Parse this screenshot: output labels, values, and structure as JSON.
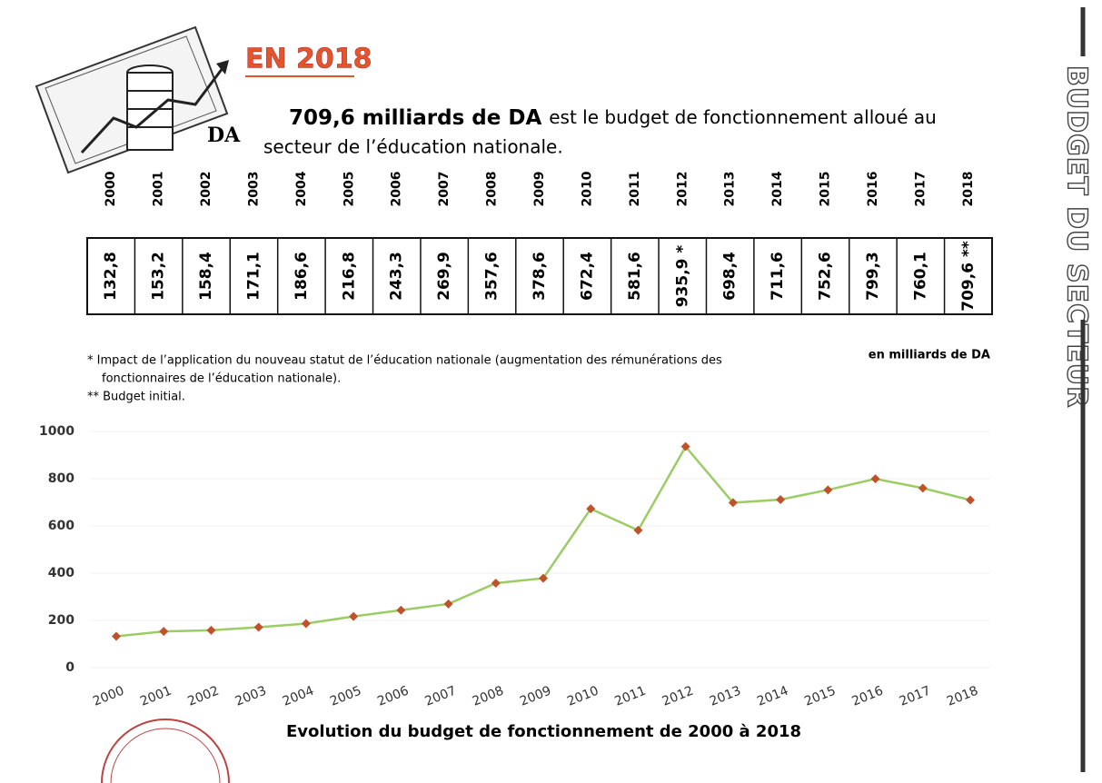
{
  "header": {
    "title": "EN 2018",
    "icon_label": "DA",
    "lead_bold": "709,6 milliards de DA",
    "lead_line1": "est le budget de fonctionnement alloué au",
    "lead_line2": "secteur de l’éducation nationale."
  },
  "side_title": "BUDGET DU SECTEUR",
  "table": {
    "years": [
      "2000",
      "2001",
      "2002",
      "2003",
      "2004",
      "2005",
      "2006",
      "2007",
      "2008",
      "2009",
      "2010",
      "2011",
      "2012",
      "2013",
      "2014",
      "2015",
      "2016",
      "2017",
      "2018"
    ],
    "values": [
      "132,8",
      "153,2",
      "158,4",
      "171,1",
      "186,6",
      "216,8",
      "243,3",
      "269,9",
      "357,6",
      "378,6",
      "672,4",
      "581,6",
      "935,9 *",
      "698,4",
      "711,6",
      "752,6",
      "799,3",
      "760,1",
      "709,6 **"
    ],
    "unit": "en milliards de DA",
    "notes": [
      "* Impact de l’application du nouveau statut de l’éducation nationale (augmentation des rémunérations des",
      "fonctionnaires de l’éducation nationale).",
      "** Budget initial."
    ]
  },
  "chart_data": {
    "type": "line",
    "title": "Evolution du budget de fonctionnement de 2000 à 2018",
    "categories": [
      "2000",
      "2001",
      "2002",
      "2003",
      "2004",
      "2005",
      "2006",
      "2007",
      "2008",
      "2009",
      "2010",
      "2011",
      "2012",
      "2013",
      "2014",
      "2015",
      "2016",
      "2017",
      "2018"
    ],
    "values": [
      132.8,
      153.2,
      158.4,
      171.1,
      186.6,
      216.8,
      243.3,
      269.9,
      357.6,
      378.6,
      672.4,
      581.6,
      935.9,
      698.4,
      711.6,
      752.6,
      799.3,
      760.1,
      709.6
    ],
    "ylim": [
      0,
      1000
    ],
    "yticks": [
      0,
      200,
      400,
      600,
      800,
      1000
    ],
    "color": "#9ccc65",
    "marker_color": "#c0522b",
    "grid": true
  }
}
